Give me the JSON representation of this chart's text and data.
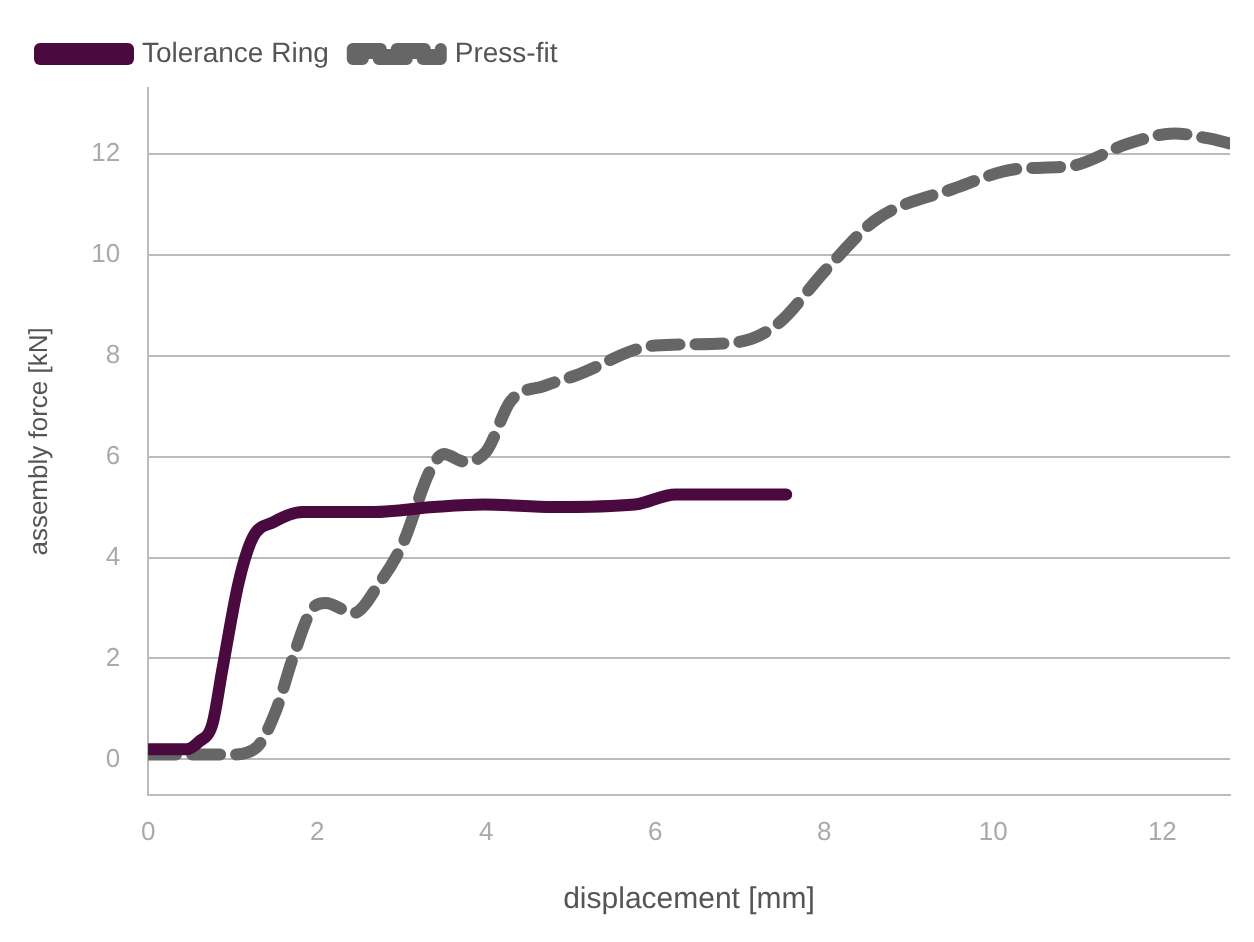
{
  "chart_data": {
    "type": "line",
    "xlabel": "displacement [mm]",
    "ylabel": "assembly force [kN]",
    "xlim": [
      0,
      12.8
    ],
    "xticks": [
      0,
      2,
      4,
      6,
      8,
      10,
      12
    ],
    "ylim": [
      -0.7,
      13.3
    ],
    "yticks": [
      0,
      2,
      4,
      6,
      8,
      10,
      12
    ],
    "grid": "y",
    "legend": "top left",
    "marker": "none",
    "series": [
      {
        "name": "Tolerance Ring",
        "color": "#4a0a3f",
        "line_style": "solid",
        "x": [
          0,
          0.45,
          0.6,
          0.76,
          0.88,
          1.07,
          1.24,
          1.48,
          1.83,
          2.24,
          2.67,
          3.38,
          3.98,
          4.8,
          5.76,
          6.24,
          7.55
        ],
        "values": [
          0.2,
          0.2,
          0.35,
          0.7,
          1.8,
          3.5,
          4.4,
          4.7,
          4.9,
          4.9,
          4.9,
          5,
          5.05,
          5,
          5.05,
          5.25,
          5.25
        ]
      },
      {
        "name": "Press-fit",
        "color": "#666666",
        "line_style": "dashed",
        "x": [
          0,
          0.43,
          1.0,
          1.29,
          1.52,
          1.71,
          1.95,
          2.1,
          2.43,
          2.74,
          3.02,
          3.33,
          3.5,
          3.74,
          4.0,
          4.29,
          4.69,
          5.05,
          6.0,
          6.9,
          7.43,
          8.02,
          8.62,
          9.52,
          10.3,
          10.9,
          11.6,
          12.14,
          12.55,
          12.8
        ],
        "values": [
          0.1,
          0.1,
          0.1,
          0.25,
          1,
          2,
          3,
          3.1,
          2.9,
          3.5,
          4.3,
          5.7,
          6.05,
          5.9,
          6.1,
          7.1,
          7.4,
          7.6,
          8.2,
          8.25,
          8.6,
          9.7,
          10.7,
          11.3,
          11.7,
          11.75,
          12.2,
          12.4,
          12.3,
          12.2
        ]
      }
    ]
  }
}
